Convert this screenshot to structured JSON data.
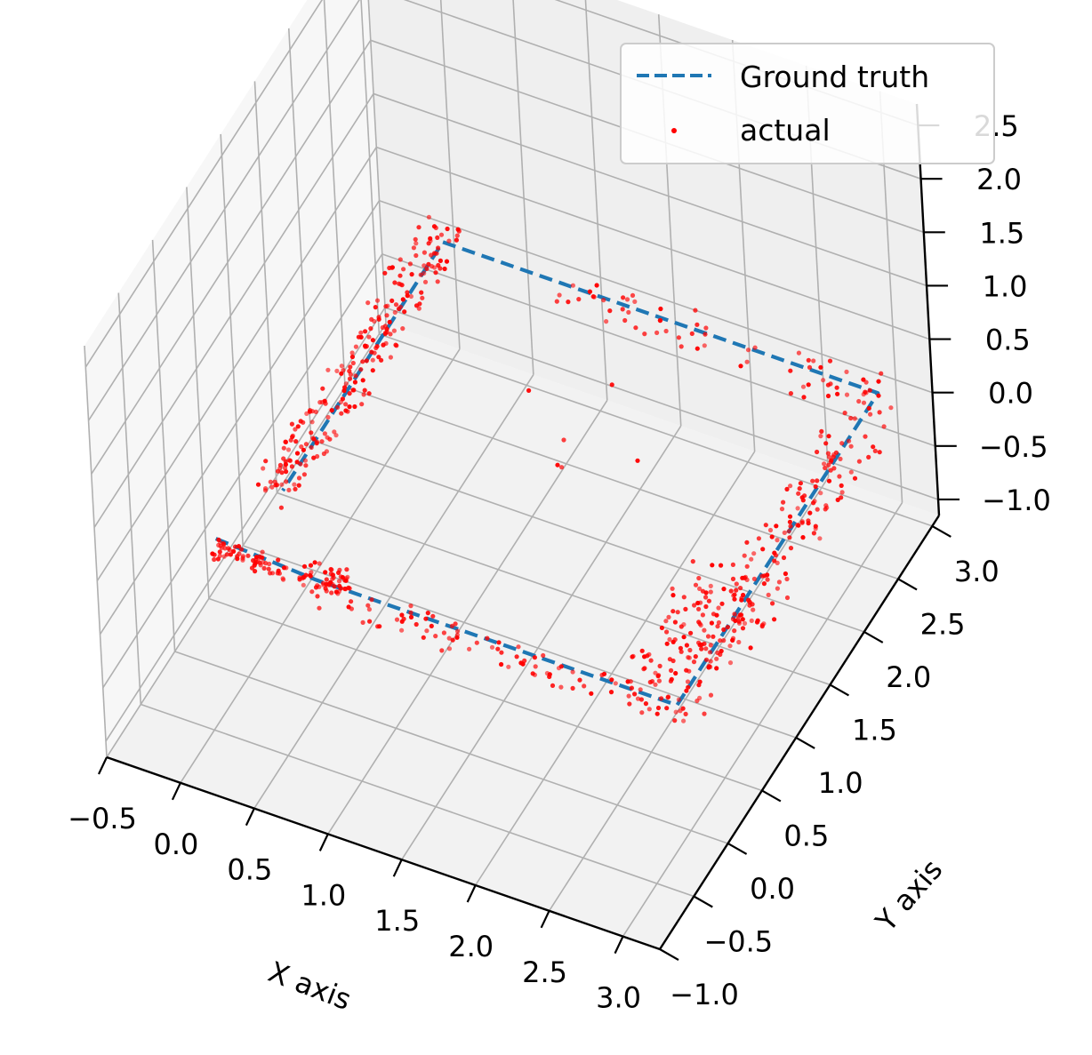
{
  "chart_data": {
    "type": "scatter",
    "projection": "3d",
    "grid": true,
    "legend_placement": "top-right",
    "xlabel": "X axis",
    "ylabel": "Y axis",
    "zlabel": "",
    "xlim": [
      -0.5,
      3.25
    ],
    "ylim": [
      -1.0,
      3.1
    ],
    "zlim": [
      -1.15,
      2.7
    ],
    "x_ticks": [
      "−0.5",
      "0.0",
      "0.5",
      "1.0",
      "1.5",
      "2.0",
      "2.5",
      "3.0"
    ],
    "y_ticks": [
      "−1.0",
      "−0.5",
      "0.0",
      "0.5",
      "1.0",
      "1.5",
      "2.0",
      "2.5",
      "3.0"
    ],
    "z_ticks": [
      "−1.0",
      "−0.5",
      "0.0",
      "0.5",
      "1.0",
      "1.5",
      "2.0",
      "2.5"
    ],
    "colors": {
      "ground_truth": "#1f77b4",
      "actual": "#ff0000",
      "grid": "#b0b0b0"
    },
    "series": [
      {
        "name": "Ground truth",
        "style": "dashed-line",
        "points": [
          {
            "x": -0.2,
            "y": 0.05,
            "z": 0.0
          },
          {
            "x": 0.5,
            "y": 0.0,
            "z": 0.0
          },
          {
            "x": 2.95,
            "y": 0.0,
            "z": 0.0
          },
          {
            "x": 2.95,
            "y": 2.95,
            "z": 0.0
          },
          {
            "x": 0.0,
            "y": 2.95,
            "z": 0.0
          },
          {
            "x": 0.0,
            "y": 0.6,
            "z": 0.0
          }
        ]
      },
      {
        "name": "actual",
        "style": "markers",
        "clusters": [
          {
            "x": [
              -0.2,
              0.3
            ],
            "y": [
              -0.05,
              0.05
            ],
            "z": [
              -0.1,
              0.05
            ],
            "count": 60
          },
          {
            "x": [
              0.4,
              0.7
            ],
            "y": [
              -0.05,
              0.1
            ],
            "z": [
              -0.05,
              0.1
            ],
            "count": 50
          },
          {
            "x": [
              0.5,
              2.9
            ],
            "y": [
              -0.1,
              0.05
            ],
            "z": [
              -0.15,
              0.05
            ],
            "count": 90
          },
          {
            "x": [
              2.6,
              3.1
            ],
            "y": [
              -0.1,
              1.0
            ],
            "z": [
              -0.2,
              0.3
            ],
            "count": 150
          },
          {
            "x": [
              2.85,
              3.1
            ],
            "y": [
              0.8,
              2.9
            ],
            "z": [
              -0.3,
              0.4
            ],
            "count": 150
          },
          {
            "x": [
              0.8,
              2.9
            ],
            "y": [
              2.75,
              3.05
            ],
            "z": [
              -0.1,
              0.1
            ],
            "count": 60
          },
          {
            "x": [
              -0.1,
              0.15
            ],
            "y": [
              1.6,
              2.95
            ],
            "z": [
              0.0,
              0.3
            ],
            "count": 120
          },
          {
            "x": [
              -0.1,
              0.15
            ],
            "y": [
              0.4,
              1.6
            ],
            "z": [
              0.0,
              0.3
            ],
            "count": 110
          },
          {
            "x": [
              1.0,
              2.0
            ],
            "y": [
              1.5,
              2.5
            ],
            "z": [
              -0.1,
              0.2
            ],
            "count": 6
          }
        ]
      }
    ]
  }
}
